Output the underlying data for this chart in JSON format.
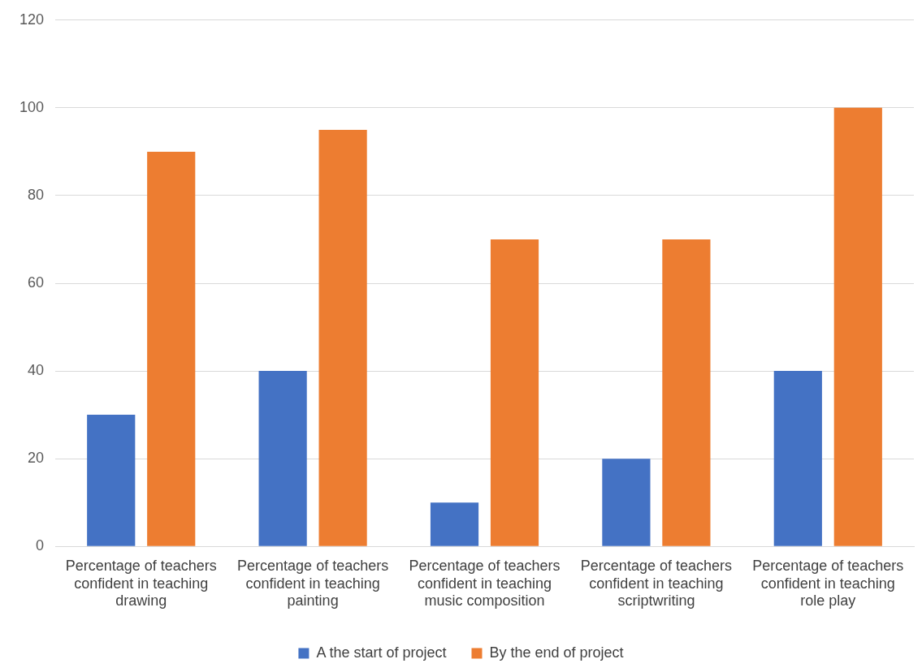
{
  "chart_data": {
    "type": "bar",
    "categories": [
      "Percentage of teachers confident in teaching drawing",
      "Percentage of teachers confident in teaching painting",
      "Percentage of teachers confident in teaching music composition",
      "Percentage of teachers confident in teaching scriptwriting",
      "Percentage of teachers confident in teaching role play"
    ],
    "series": [
      {
        "name": "A the start of project",
        "color": "#4472c4",
        "values": [
          30,
          40,
          10,
          20,
          40
        ]
      },
      {
        "name": "By the end of project",
        "color": "#ed7d31",
        "values": [
          90,
          95,
          70,
          70,
          100
        ]
      }
    ],
    "ylim": [
      0,
      120
    ],
    "yticks": [
      0,
      20,
      40,
      60,
      80,
      100,
      120
    ],
    "grid": "y",
    "legend": "bottom"
  }
}
